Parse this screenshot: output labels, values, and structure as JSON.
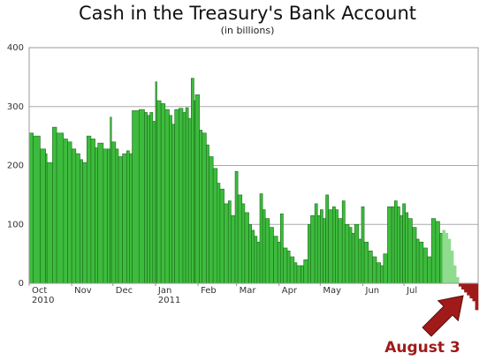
{
  "chart_data": {
    "type": "bar",
    "title": "Cash in the Treasury's Bank Account",
    "subtitle": "(in billions)",
    "annotation": "August 3",
    "xlim": [
      0,
      327
    ],
    "xticks": [
      {
        "value": 0,
        "label": "Oct"
      },
      {
        "value": 31,
        "label": "Nov"
      },
      {
        "value": 61,
        "label": "Dec"
      },
      {
        "value": 92,
        "label": "Jan"
      },
      {
        "value": 123,
        "label": "Feb"
      },
      {
        "value": 151,
        "label": "Mar"
      },
      {
        "value": 182,
        "label": "Apr"
      },
      {
        "value": 212,
        "label": "May"
      },
      {
        "value": 243,
        "label": "Jun"
      },
      {
        "value": 273,
        "label": "Jul"
      }
    ],
    "x_year_labels": [
      {
        "value": 0,
        "label": "2010"
      },
      {
        "value": 92,
        "label": "2011"
      }
    ],
    "ylim": [
      0,
      400
    ],
    "yticks": [
      0,
      100,
      200,
      300,
      400
    ],
    "grid": true,
    "series": [
      {
        "color": "#3dbb3d",
        "x": [
          0,
          3,
          8,
          12,
          13,
          17,
          20,
          25,
          28,
          31,
          34,
          37,
          39,
          42,
          45,
          48,
          50,
          54,
          57,
          59,
          60,
          63,
          65,
          68,
          71,
          73,
          75,
          80,
          84,
          86,
          88,
          90,
          92,
          93,
          96,
          99,
          102,
          104,
          106,
          109,
          112,
          114,
          116,
          118,
          120,
          121,
          124,
          126,
          129,
          131,
          134,
          137,
          139,
          142,
          145,
          147,
          150,
          152,
          155,
          157,
          160,
          162,
          164,
          166,
          168,
          170,
          172,
          175,
          178,
          181,
          183,
          185,
          188,
          190,
          193,
          195,
          198,
          200,
          203,
          205,
          208,
          210,
          212,
          214,
          216,
          218,
          221,
          223,
          225,
          228,
          230,
          233,
          235,
          237,
          240,
          242,
          244,
          247,
          250,
          253,
          256,
          258,
          261,
          264,
          266,
          268,
          270,
          272,
          274,
          276,
          279,
          282,
          284,
          287,
          290,
          293,
          296,
          299
        ],
        "values": [
          255,
          250,
          228,
          220,
          205,
          265,
          255,
          245,
          240,
          228,
          220,
          210,
          205,
          250,
          245,
          230,
          238,
          228,
          228,
          282,
          240,
          228,
          215,
          220,
          225,
          220,
          293,
          295,
          290,
          285,
          290,
          275,
          342,
          310,
          305,
          295,
          285,
          270,
          295,
          297,
          290,
          298,
          280,
          348,
          310,
          320,
          260,
          255,
          235,
          215,
          195,
          170,
          160,
          135,
          140,
          115,
          190,
          150,
          135,
          120,
          100,
          90,
          80,
          70,
          152,
          125,
          110,
          95,
          80,
          70,
          118,
          60,
          55,
          45,
          35,
          30,
          30,
          40,
          100,
          115,
          135,
          115,
          125,
          110,
          150,
          125,
          130,
          125,
          110,
          140,
          100,
          95,
          85,
          100,
          75,
          130,
          70,
          55,
          45,
          35,
          30,
          50,
          130,
          130,
          140,
          130,
          115,
          135,
          120,
          110,
          95,
          75,
          70,
          60,
          45,
          110,
          105,
          85
        ]
      },
      {
        "color": "#8fdc8f",
        "x": [
          301,
          303,
          305,
          307,
          309,
          311
        ],
        "values": [
          90,
          85,
          75,
          55,
          30,
          10
        ]
      },
      {
        "color": "#a01a1a",
        "x": [
          313,
          315,
          317,
          319,
          321,
          323,
          325
        ],
        "values": [
          -5,
          -10,
          -15,
          -20,
          -25,
          -30,
          -45
        ]
      }
    ]
  }
}
